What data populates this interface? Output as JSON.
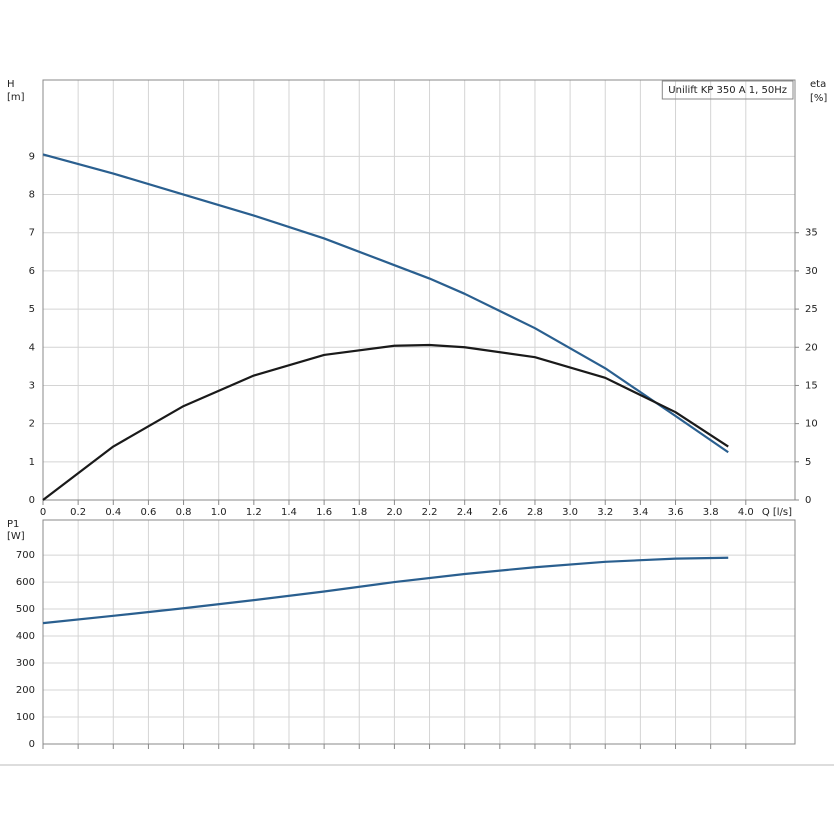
{
  "chart_data": [
    {
      "type": "line",
      "legend_text": "Unilift KP 350 A 1, 50Hz",
      "y_label": "H",
      "y_unit": "[m]",
      "y2_label": "eta",
      "y2_unit": "[%]",
      "x_label": "Q [l/s]",
      "xlim": [
        0,
        4.28
      ],
      "xticks": [
        0,
        0.2,
        0.4,
        0.6,
        0.8,
        {
          "value": 1,
          "label": "1.0"
        },
        1.2,
        1.4,
        1.6,
        1.8,
        {
          "value": 2,
          "label": "2.0"
        },
        2.2,
        2.4,
        2.6,
        2.8,
        {
          "value": 3,
          "label": "3.0"
        },
        3.2,
        3.4,
        3.6,
        3.8,
        {
          "value": 4,
          "label": "4.0"
        }
      ],
      "ylim": [
        0,
        11
      ],
      "yticks": [
        0,
        1,
        2,
        3,
        4,
        5,
        6,
        7,
        8,
        9
      ],
      "y2lim": [
        0,
        55
      ],
      "y2ticks": [
        0,
        5,
        10,
        15,
        20,
        25,
        30,
        35
      ],
      "grid": true,
      "x": [
        0,
        0.4,
        0.8,
        1.2,
        1.6,
        2.0,
        2.2,
        2.4,
        2.8,
        3.2,
        3.6,
        3.9
      ],
      "series": [
        {
          "name": "H",
          "color": "#2a5f8f",
          "values": [
            9.05,
            8.55,
            8.0,
            7.45,
            6.85,
            6.15,
            5.8,
            5.4,
            4.5,
            3.45,
            2.2,
            1.25
          ]
        },
        {
          "name": "eta",
          "color": "#1a1a1a",
          "axis": "y2",
          "values": [
            0,
            7,
            12.3,
            16.3,
            19,
            20.2,
            20.3,
            20,
            18.7,
            16,
            11.5,
            7
          ]
        }
      ]
    },
    {
      "type": "line",
      "y_label": "P1",
      "y_unit": "[W]",
      "xlim": [
        0,
        4.28
      ],
      "ylim": [
        0,
        830
      ],
      "yticks": [
        0,
        100,
        200,
        300,
        400,
        500,
        600,
        700
      ],
      "grid": true,
      "x": [
        0,
        0.4,
        0.8,
        1.2,
        1.6,
        2.0,
        2.4,
        2.8,
        3.2,
        3.6,
        3.9
      ],
      "series": [
        {
          "name": "P1",
          "color": "#2a5f8f",
          "values": [
            448,
            475,
            503,
            533,
            565,
            600,
            630,
            655,
            675,
            687,
            690
          ]
        }
      ]
    }
  ]
}
